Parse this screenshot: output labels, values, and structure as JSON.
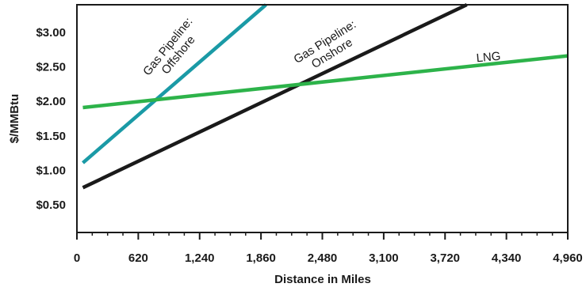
{
  "chart_data": {
    "type": "line",
    "xlabel": "Distance in Miles",
    "ylabel": "$/MMBtu",
    "xlim": [
      0,
      4960
    ],
    "ylim": [
      0.1,
      3.4
    ],
    "x_ticks": [
      0,
      620,
      1240,
      1860,
      2480,
      3100,
      3720,
      4340,
      4960
    ],
    "x_tick_labels": [
      "0",
      "620",
      "1,240",
      "1,860",
      "2,480",
      "3,100",
      "3,720",
      "4,340",
      "4,960"
    ],
    "y_ticks": [
      0.5,
      1.0,
      1.5,
      2.0,
      2.5,
      3.0
    ],
    "y_tick_labels": [
      "$0.50",
      "$1.00",
      "$1.50",
      "$2.00",
      "$2.50",
      "$3.00"
    ],
    "grid": false,
    "series": [
      {
        "name": "Gas Pipeline: Offshore",
        "label_lines": [
          "Gas Pipeline:",
          "Offshore"
        ],
        "color": "#1a9aa6",
        "x": [
          60,
          1910
        ],
        "y": [
          1.11,
          3.4
        ]
      },
      {
        "name": "Gas Pipeline: Onshore",
        "label_lines": [
          "Gas Pipeline:",
          "Onshore"
        ],
        "color": "#1a1a1a",
        "x": [
          60,
          3940
        ],
        "y": [
          0.75,
          3.4
        ]
      },
      {
        "name": "LNG",
        "label_lines": [
          "LNG"
        ],
        "color": "#2db34a",
        "x": [
          60,
          4960
        ],
        "y": [
          1.91,
          2.66
        ]
      }
    ]
  }
}
